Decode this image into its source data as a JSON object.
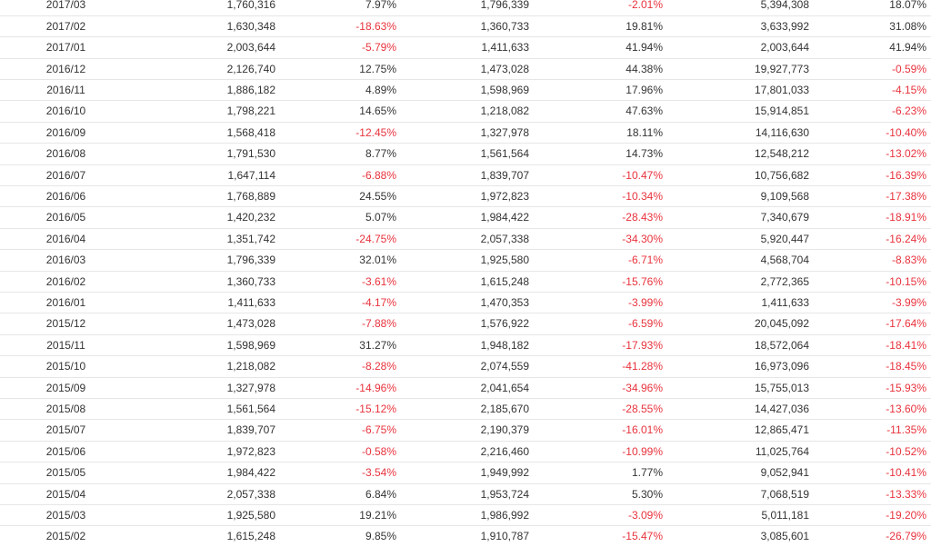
{
  "table": {
    "rows": [
      [
        "2017/03",
        "1,760,316",
        "7.97%",
        "1,796,339",
        "-2.01%",
        "5,394,308",
        "18.07%"
      ],
      [
        "2017/02",
        "1,630,348",
        "-18.63%",
        "1,360,733",
        "19.81%",
        "3,633,992",
        "31.08%"
      ],
      [
        "2017/01",
        "2,003,644",
        "-5.79%",
        "1,411,633",
        "41.94%",
        "2,003,644",
        "41.94%"
      ],
      [
        "2016/12",
        "2,126,740",
        "12.75%",
        "1,473,028",
        "44.38%",
        "19,927,773",
        "-0.59%"
      ],
      [
        "2016/11",
        "1,886,182",
        "4.89%",
        "1,598,969",
        "17.96%",
        "17,801,033",
        "-4.15%"
      ],
      [
        "2016/10",
        "1,798,221",
        "14.65%",
        "1,218,082",
        "47.63%",
        "15,914,851",
        "-6.23%"
      ],
      [
        "2016/09",
        "1,568,418",
        "-12.45%",
        "1,327,978",
        "18.11%",
        "14,116,630",
        "-10.40%"
      ],
      [
        "2016/08",
        "1,791,530",
        "8.77%",
        "1,561,564",
        "14.73%",
        "12,548,212",
        "-13.02%"
      ],
      [
        "2016/07",
        "1,647,114",
        "-6.88%",
        "1,839,707",
        "-10.47%",
        "10,756,682",
        "-16.39%"
      ],
      [
        "2016/06",
        "1,768,889",
        "24.55%",
        "1,972,823",
        "-10.34%",
        "9,109,568",
        "-17.38%"
      ],
      [
        "2016/05",
        "1,420,232",
        "5.07%",
        "1,984,422",
        "-28.43%",
        "7,340,679",
        "-18.91%"
      ],
      [
        "2016/04",
        "1,351,742",
        "-24.75%",
        "2,057,338",
        "-34.30%",
        "5,920,447",
        "-16.24%"
      ],
      [
        "2016/03",
        "1,796,339",
        "32.01%",
        "1,925,580",
        "-6.71%",
        "4,568,704",
        "-8.83%"
      ],
      [
        "2016/02",
        "1,360,733",
        "-3.61%",
        "1,615,248",
        "-15.76%",
        "2,772,365",
        "-10.15%"
      ],
      [
        "2016/01",
        "1,411,633",
        "-4.17%",
        "1,470,353",
        "-3.99%",
        "1,411,633",
        "-3.99%"
      ],
      [
        "2015/12",
        "1,473,028",
        "-7.88%",
        "1,576,922",
        "-6.59%",
        "20,045,092",
        "-17.64%"
      ],
      [
        "2015/11",
        "1,598,969",
        "31.27%",
        "1,948,182",
        "-17.93%",
        "18,572,064",
        "-18.41%"
      ],
      [
        "2015/10",
        "1,218,082",
        "-8.28%",
        "2,074,559",
        "-41.28%",
        "16,973,096",
        "-18.45%"
      ],
      [
        "2015/09",
        "1,327,978",
        "-14.96%",
        "2,041,654",
        "-34.96%",
        "15,755,013",
        "-15.93%"
      ],
      [
        "2015/08",
        "1,561,564",
        "-15.12%",
        "2,185,670",
        "-28.55%",
        "14,427,036",
        "-13.60%"
      ],
      [
        "2015/07",
        "1,839,707",
        "-6.75%",
        "2,190,379",
        "-16.01%",
        "12,865,471",
        "-11.35%"
      ],
      [
        "2015/06",
        "1,972,823",
        "-0.58%",
        "2,216,460",
        "-10.99%",
        "11,025,764",
        "-10.52%"
      ],
      [
        "2015/05",
        "1,984,422",
        "-3.54%",
        "1,949,992",
        "1.77%",
        "9,052,941",
        "-10.41%"
      ],
      [
        "2015/04",
        "2,057,338",
        "6.84%",
        "1,953,724",
        "5.30%",
        "7,068,519",
        "-13.33%"
      ],
      [
        "2015/03",
        "1,925,580",
        "19.21%",
        "1,986,992",
        "-3.09%",
        "5,011,181",
        "-19.20%"
      ],
      [
        "2015/02",
        "1,615,248",
        "9.85%",
        "1,910,787",
        "-15.47%",
        "3,085,601",
        "-26.79%"
      ]
    ]
  }
}
